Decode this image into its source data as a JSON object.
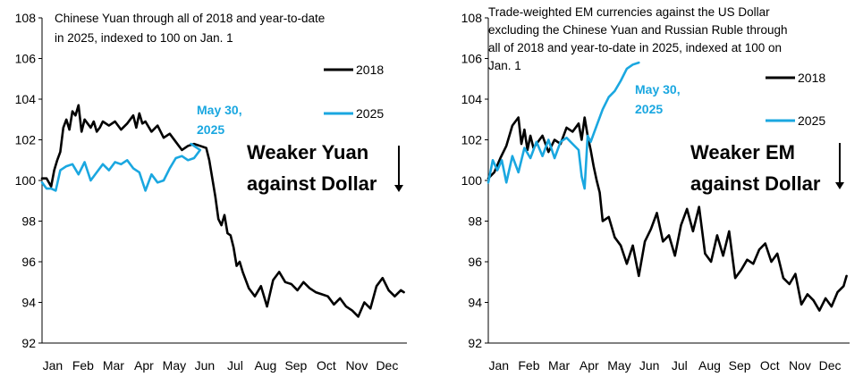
{
  "colors": {
    "s2018": "#000000",
    "s2025": "#1AA7E0",
    "axis": "#000000"
  },
  "chart_data": [
    {
      "type": "line",
      "title_lines": [
        "Chinese Yuan through all of 2018 and year-to-date",
        "in 2025, indexed to 100 on Jan. 1"
      ],
      "xlabel": "",
      "ylabel": "",
      "x_tick_labels": [
        "Jan",
        "Feb",
        "Mar",
        "Apr",
        "May",
        "Jun",
        "Jul",
        "Aug",
        "Sep",
        "Oct",
        "Nov",
        "Dec"
      ],
      "xlim": [
        0,
        12
      ],
      "ylim": [
        92,
        108
      ],
      "y_ticks": [
        92,
        94,
        96,
        98,
        100,
        102,
        104,
        106,
        108
      ],
      "legend": [
        "2018",
        "2025"
      ],
      "legend_position": "top-right",
      "annotation": [
        "May 30,",
        "2025"
      ],
      "arrow_text": [
        "Weaker Yuan",
        "against Dollar"
      ],
      "series": [
        {
          "name": "2018",
          "x": [
            0,
            0.15,
            0.3,
            0.4,
            0.5,
            0.6,
            0.7,
            0.8,
            0.9,
            1.0,
            1.1,
            1.2,
            1.3,
            1.4,
            1.5,
            1.6,
            1.7,
            1.8,
            1.9,
            2.0,
            2.2,
            2.4,
            2.6,
            2.8,
            3.0,
            3.1,
            3.2,
            3.3,
            3.4,
            3.6,
            3.8,
            4.0,
            4.2,
            4.4,
            4.6,
            4.8,
            5.0,
            5.2,
            5.4,
            5.5,
            5.6,
            5.7,
            5.8,
            5.9,
            6.0,
            6.1,
            6.2,
            6.3,
            6.4,
            6.5,
            6.6,
            6.8,
            7.0,
            7.2,
            7.4,
            7.6,
            7.8,
            8.0,
            8.2,
            8.4,
            8.6,
            8.8,
            9.0,
            9.2,
            9.4,
            9.6,
            9.8,
            10.0,
            10.2,
            10.4,
            10.6,
            10.8,
            11.0,
            11.2,
            11.4,
            11.6,
            11.8,
            11.9
          ],
          "y": [
            100.1,
            100.1,
            99.7,
            100.5,
            101.0,
            101.4,
            102.6,
            103.0,
            102.5,
            103.4,
            103.2,
            103.7,
            102.4,
            103.0,
            102.8,
            102.6,
            102.9,
            102.4,
            102.6,
            102.9,
            102.7,
            102.9,
            102.5,
            102.8,
            103.2,
            102.6,
            103.3,
            102.8,
            102.9,
            102.4,
            102.7,
            102.1,
            102.3,
            101.9,
            101.5,
            101.7,
            101.8,
            101.7,
            101.6,
            101.0,
            100.1,
            99.2,
            98.1,
            97.8,
            98.3,
            97.4,
            97.3,
            96.7,
            95.8,
            96.0,
            95.5,
            94.7,
            94.3,
            94.8,
            93.8,
            95.1,
            95.5,
            95.0,
            94.9,
            94.6,
            95.0,
            94.7,
            94.5,
            94.4,
            94.3,
            93.9,
            94.2,
            93.8,
            93.6,
            93.3,
            94.0,
            93.7,
            94.8,
            95.2,
            94.6,
            94.3,
            94.6,
            94.5
          ]
        },
        {
          "name": "2025",
          "x": [
            0,
            0.15,
            0.3,
            0.45,
            0.6,
            0.8,
            1.0,
            1.2,
            1.4,
            1.6,
            1.8,
            2.0,
            2.2,
            2.4,
            2.6,
            2.8,
            3.0,
            3.2,
            3.4,
            3.6,
            3.8,
            4.0,
            4.2,
            4.4,
            4.6,
            4.8,
            5.0,
            5.2,
            4.9
          ],
          "y": [
            99.9,
            99.6,
            99.6,
            99.5,
            100.5,
            100.7,
            100.8,
            100.3,
            100.9,
            100.0,
            100.4,
            100.8,
            100.5,
            100.9,
            100.8,
            101.0,
            100.6,
            100.4,
            99.5,
            100.3,
            99.9,
            100.0,
            100.6,
            101.1,
            101.2,
            101.0,
            101.1,
            101.5,
            101.8
          ]
        }
      ]
    },
    {
      "type": "line",
      "title_lines": [
        "Trade-weighted EM currencies against the US Dollar",
        "excluding the Chinese Yuan and Russian Ruble through",
        "all of 2018 and year-to-date in 2025, indexed at 100 on",
        "Jan. 1"
      ],
      "xlabel": "",
      "ylabel": "",
      "x_tick_labels": [
        "Jan",
        "Feb",
        "Mar",
        "Apr",
        "May",
        "Jun",
        "Jul",
        "Aug",
        "Sep",
        "Oct",
        "Nov",
        "Dec"
      ],
      "xlim": [
        0,
        12
      ],
      "ylim": [
        92,
        108
      ],
      "y_ticks": [
        92,
        94,
        96,
        98,
        100,
        102,
        104,
        106,
        108
      ],
      "legend": [
        "2018",
        "2025"
      ],
      "legend_position": "top-right",
      "annotation": [
        "May 30,",
        "2025"
      ],
      "arrow_text": [
        "Weaker EM",
        "against Dollar"
      ],
      "series": [
        {
          "name": "2018",
          "x": [
            0,
            0.2,
            0.4,
            0.6,
            0.8,
            1.0,
            1.1,
            1.2,
            1.3,
            1.4,
            1.5,
            1.6,
            1.8,
            2.0,
            2.2,
            2.4,
            2.6,
            2.8,
            3.0,
            3.1,
            3.2,
            3.3,
            3.4,
            3.5,
            3.6,
            3.7,
            3.8,
            4.0,
            4.2,
            4.4,
            4.6,
            4.8,
            5.0,
            5.2,
            5.4,
            5.6,
            5.8,
            6.0,
            6.2,
            6.4,
            6.6,
            6.8,
            7.0,
            7.2,
            7.4,
            7.6,
            7.8,
            8.0,
            8.2,
            8.4,
            8.6,
            8.8,
            9.0,
            9.2,
            9.4,
            9.6,
            9.8,
            10.0,
            10.2,
            10.4,
            10.6,
            10.8,
            11.0,
            11.2,
            11.4,
            11.6,
            11.8,
            11.9
          ],
          "y": [
            100.1,
            100.4,
            101.1,
            101.7,
            102.7,
            103.1,
            101.8,
            102.5,
            101.5,
            102.2,
            101.6,
            101.8,
            102.2,
            101.4,
            102.0,
            101.8,
            102.6,
            102.4,
            102.8,
            102.0,
            103.1,
            102.2,
            101.5,
            100.7,
            100.0,
            99.4,
            98.0,
            98.2,
            97.2,
            96.8,
            95.9,
            96.8,
            95.3,
            97.0,
            97.6,
            98.4,
            97.0,
            97.3,
            96.3,
            97.8,
            98.6,
            97.5,
            98.7,
            96.4,
            96.0,
            97.3,
            96.3,
            97.5,
            95.2,
            95.6,
            96.1,
            95.9,
            96.6,
            96.9,
            96.0,
            96.4,
            95.2,
            94.9,
            95.4,
            93.9,
            94.4,
            94.1,
            93.6,
            94.2,
            93.8,
            94.5,
            94.8,
            95.3
          ]
        },
        {
          "name": "2025",
          "x": [
            0,
            0.15,
            0.3,
            0.45,
            0.6,
            0.8,
            1.0,
            1.2,
            1.4,
            1.6,
            1.8,
            2.0,
            2.2,
            2.4,
            2.6,
            2.8,
            3.0,
            3.1,
            3.2,
            3.3,
            3.4,
            3.6,
            3.8,
            4.0,
            4.2,
            4.4,
            4.6,
            4.8,
            5.0
          ],
          "y": [
            99.9,
            101.0,
            100.5,
            101.0,
            99.9,
            101.2,
            100.4,
            101.6,
            101.1,
            101.9,
            101.2,
            102.0,
            101.1,
            101.9,
            102.1,
            101.8,
            101.5,
            100.2,
            99.6,
            102.2,
            101.9,
            102.7,
            103.5,
            104.1,
            104.4,
            104.9,
            105.5,
            105.7,
            105.8
          ]
        }
      ]
    }
  ]
}
